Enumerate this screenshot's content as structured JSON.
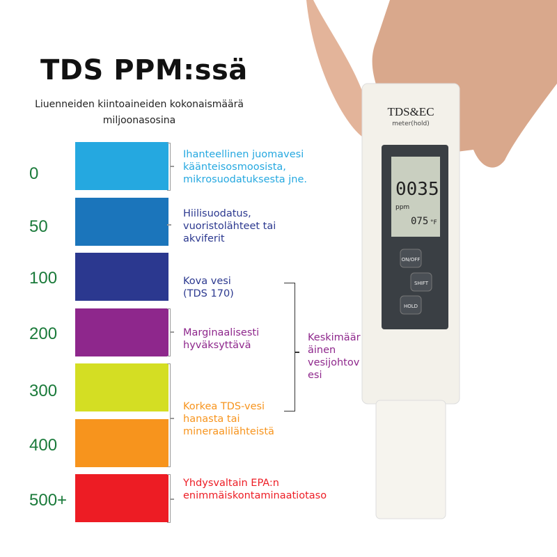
{
  "title": "TDS PPM:ssä",
  "subtitle_line1": "Liuenneiden kiintoaineiden kokonaismäärä",
  "subtitle_line2": "miljoonasosina",
  "levels": [
    {
      "label": "0",
      "color": "#25a8e0"
    },
    {
      "label": "50",
      "color": "#1b75bb"
    },
    {
      "label": "100",
      "color": "#2b388f"
    },
    {
      "label": "200",
      "color": "#8e278c"
    },
    {
      "label": "300",
      "color": "#d4de23"
    },
    {
      "label": "400",
      "color": "#f7941d"
    },
    {
      "label": "500+",
      "color": "#ed1c24"
    }
  ],
  "descriptions": [
    {
      "lines": [
        "Ihanteellinen juomavesi",
        "käänteisosmoosista,",
        "mikrosuodatuksesta jne."
      ],
      "color": "#25a8e0"
    },
    {
      "lines": [
        "Hiilisuodatus,",
        "vuoristolähteet tai",
        "akviferit"
      ],
      "color": "#2b388f"
    },
    {
      "lines": [
        "Kova vesi",
        "(TDS 170)"
      ],
      "color": "#2b388f"
    },
    {
      "lines": [
        "Marginaalisesti",
        "hyväksyttävä"
      ],
      "color": "#8e278c"
    },
    {
      "lines": [
        "Korkea TDS-vesi",
        "hanasta tai",
        "mineraalilähteistä"
      ],
      "color": "#f7941d"
    },
    {
      "lines": [
        "Yhdysvaltain EPA:n",
        "enimmäiskontaminaatiotaso"
      ],
      "color": "#ed1c24"
    }
  ],
  "average_tap": {
    "lines": [
      "Keskimäär",
      "äinen",
      "vesijohtov",
      "esi"
    ],
    "color": "#8e278c"
  },
  "device": {
    "brand": "TDS&EC",
    "mode": "meter(hold)",
    "reading": "0035",
    "unit": "ppm",
    "temperature": "075",
    "temp_unit": "°F",
    "buttons": [
      "ON/OFF",
      "SHIFT",
      "HOLD"
    ]
  }
}
